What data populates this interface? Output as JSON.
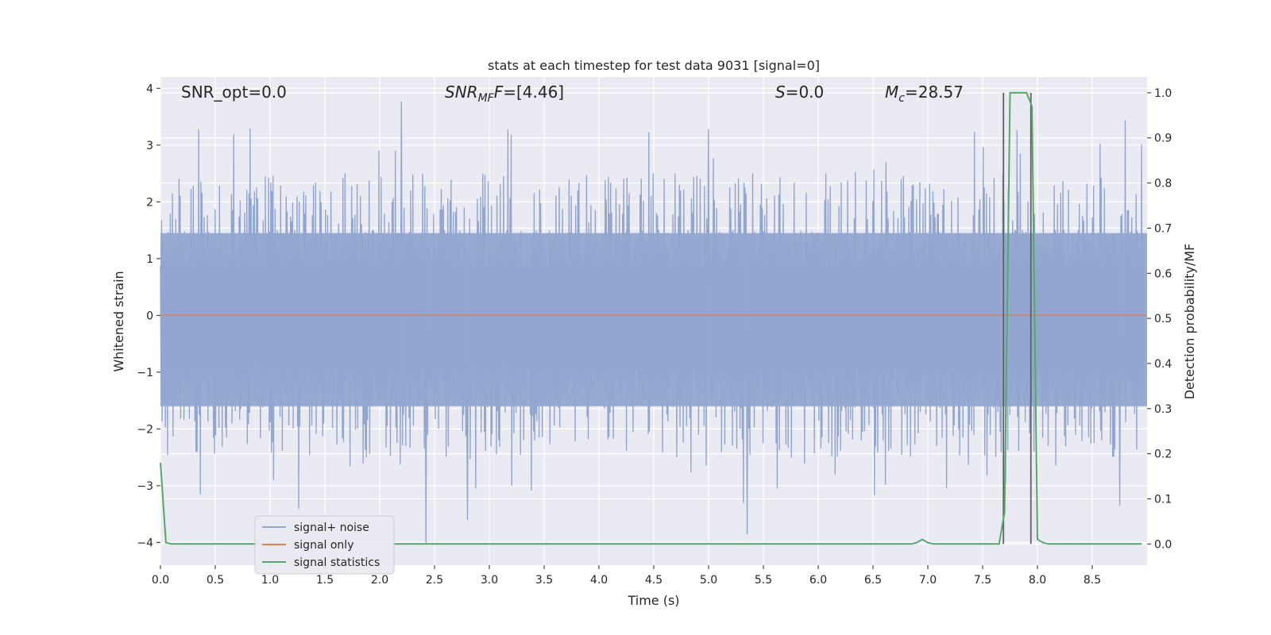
{
  "chart_data": {
    "type": "line",
    "title": "stats at each timestep for test data 9031 [signal=0]",
    "xlabel": "Time (s)",
    "ylabel_left": "Whitened strain",
    "ylabel_right": "Detection probability/MF",
    "xlim": [
      0.0,
      9.0
    ],
    "ylim_left": [
      -4.4,
      4.2
    ],
    "ylim_right": [
      -0.047,
      1.035
    ],
    "x_ticks": [
      "0.0",
      "0.5",
      "1.0",
      "1.5",
      "2.0",
      "2.5",
      "3.0",
      "3.5",
      "4.0",
      "4.5",
      "5.0",
      "5.5",
      "6.0",
      "6.5",
      "7.0",
      "7.5",
      "8.0",
      "8.5"
    ],
    "y_ticks_left": [
      "−4",
      "−3",
      "−2",
      "−1",
      "0",
      "1",
      "2",
      "3",
      "4"
    ],
    "y_ticks_right": [
      "0.0",
      "0.1",
      "0.2",
      "0.3",
      "0.4",
      "0.5",
      "0.6",
      "0.7",
      "0.8",
      "0.9",
      "1.0"
    ],
    "grid": true,
    "legend_position": "lower-left",
    "annotations": {
      "snr_opt": "SNR_opt=0.0",
      "snr_mf_sym": "SNR",
      "snr_mf_sub": "MF",
      "snr_mf_val": "=[4.46]",
      "s_sym": "S",
      "s_val": "=0.0",
      "mc_sym": "M",
      "mc_sub": "c",
      "mc_val": "=28.57"
    },
    "series": [
      {
        "name": "signal+ noise",
        "color": "#92a6cf",
        "axis": "left",
        "description_values": {
          "typical_envelope": [
            -1.6,
            1.5
          ],
          "peaks": [
            [
              0.35,
              3.27
            ],
            [
              2.2,
              3.76
            ],
            [
              2.42,
              -4.0
            ],
            [
              2.8,
              -3.6
            ],
            [
              5.0,
              3.27
            ],
            [
              5.35,
              -3.85
            ],
            [
              1.26,
              -3.4
            ],
            [
              8.75,
              -3.35
            ],
            [
              8.8,
              3.43
            ]
          ]
        }
      },
      {
        "name": "signal only",
        "color": "#dd8452",
        "axis": "left",
        "x": [
          0.0,
          9.0
        ],
        "y": [
          0.0,
          0.0
        ]
      },
      {
        "name": "signal statistics",
        "color": "#55a868",
        "axis": "right",
        "x": [
          0.0,
          0.05,
          0.1,
          0.15,
          6.85,
          6.9,
          6.95,
          7.0,
          7.05,
          7.65,
          7.7,
          7.75,
          7.8,
          7.85,
          7.9,
          7.95,
          8.0,
          8.05,
          8.1,
          8.95
        ],
        "y": [
          0.18,
          0.003,
          0.0,
          0.0,
          0.0,
          0.003,
          0.01,
          0.003,
          0.0,
          0.0,
          0.07,
          1.0,
          1.0,
          1.0,
          1.0,
          0.97,
          0.01,
          0.003,
          0.0,
          0.0
        ]
      }
    ],
    "vertical_lines": [
      {
        "x": 7.69,
        "ymax": 1.0,
        "color": "#606060"
      },
      {
        "x": 7.94,
        "ymax": 1.0,
        "color": "#606060"
      }
    ]
  }
}
